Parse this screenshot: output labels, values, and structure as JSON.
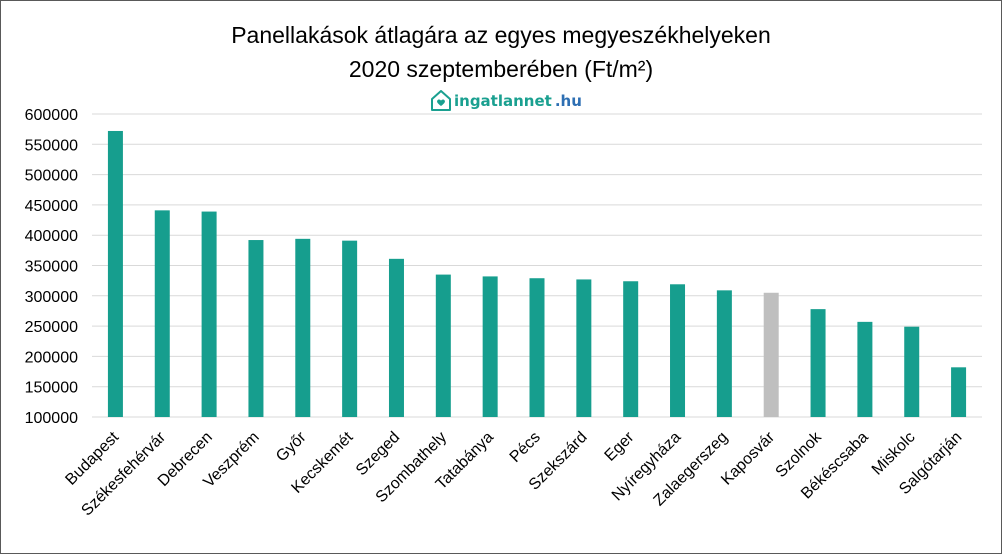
{
  "chart_data": {
    "type": "bar",
    "title": "Panellakások átlagára az egyes megyeszékhelyeken",
    "subtitle": "2020 szeptemberében  (Ft/m²)",
    "categories": [
      "Budapest",
      "Székesfehérvár",
      "Debrecen",
      "Veszprém",
      "Győr",
      "Kecskemét",
      "Szeged",
      "Szombathely",
      "Tatabánya",
      "Pécs",
      "Szekszárd",
      "Eger",
      "Nyíregyháza",
      "Zalaegerszeg",
      "Kaposvár",
      "Szolnok",
      "Békéscsaba",
      "Miskolc",
      "Salgótarján"
    ],
    "values": [
      572000,
      441000,
      439000,
      392000,
      394000,
      391000,
      361000,
      335000,
      332000,
      329000,
      327000,
      324000,
      319000,
      309000,
      305000,
      278000,
      257000,
      249000,
      182000
    ],
    "highlight_index": 14,
    "ylim": [
      100000,
      600000
    ],
    "yticks": [
      100000,
      150000,
      200000,
      250000,
      300000,
      350000,
      400000,
      450000,
      500000,
      550000,
      600000
    ],
    "grid": true,
    "xlabel": "",
    "ylabel": "",
    "colors": {
      "bar": "#169e8e",
      "highlight": "#bfbfbf",
      "grid": "#d9d9d9"
    }
  },
  "logo": {
    "name": "ingatlannet",
    "tld": ".hu",
    "icon": "house-heart-icon"
  }
}
